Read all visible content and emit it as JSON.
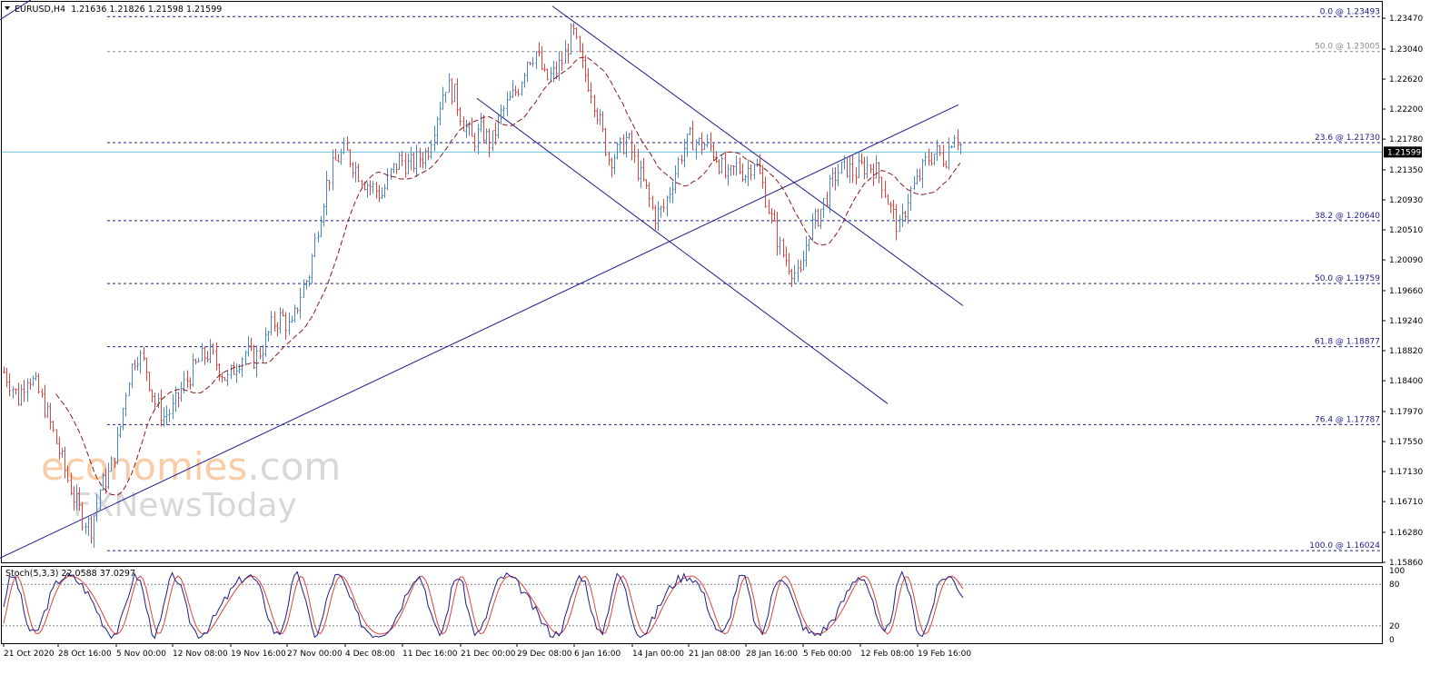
{
  "title": {
    "symbol": "EURUSD,H4",
    "ohlc": "1.21636 1.21826 1.21598 1.21599"
  },
  "stoch_label": "Stoch(5,3,3) 22.0588 37.0297",
  "current_price": "1.21599",
  "watermark": {
    "line1_a": "econ",
    "line1_b": "omies",
    "line1_c": ".com",
    "line2": "FXNewsToday"
  },
  "colors": {
    "bull": "#4a86c8",
    "bear": "#e0443c",
    "ma": "#8b1a1a",
    "trendline": "#1c1c8a",
    "fib": "#1c1c8a",
    "fib_50_top": "#8a8a8a",
    "stoch_main": "#1c1c8a",
    "stoch_signal": "#e0443c",
    "current_line": "#6fc3df",
    "watermark_orange": "#f4a460",
    "watermark_grey": "#b8b8b8"
  },
  "chart_data": {
    "type": "candlestick",
    "symbol": "EURUSD",
    "timeframe": "H4",
    "ylim": [
      1.1586,
      1.237
    ],
    "y_ticks": [
      "1.23470",
      "1.23040",
      "1.22620",
      "1.22200",
      "1.21780",
      "1.21350",
      "1.20930",
      "1.20510",
      "1.20090",
      "1.19660",
      "1.19240",
      "1.18820",
      "1.18400",
      "1.17970",
      "1.17550",
      "1.17130",
      "1.16710",
      "1.16280",
      "1.15860"
    ],
    "x_ticks": [
      "21 Oct 2020",
      "28 Oct 16:00",
      "5 Nov 00:00",
      "12 Nov 08:00",
      "19 Nov 16:00",
      "27 Nov 00:00",
      "4 Dec 08:00",
      "11 Dec 16:00",
      "21 Dec 00:00",
      "29 Dec 08:00",
      "6 Jan 16:00",
      "14 Jan 00:00",
      "21 Jan 08:00",
      "28 Jan 16:00",
      "5 Feb 00:00",
      "12 Feb 08:00",
      "19 Feb 16:00"
    ],
    "price_path": [
      [
        0,
        1.186
      ],
      [
        10,
        1.184
      ],
      [
        20,
        1.1815
      ],
      [
        30,
        1.185
      ],
      [
        40,
        1.183
      ],
      [
        50,
        1.18
      ],
      [
        60,
        1.176
      ],
      [
        70,
        1.172
      ],
      [
        80,
        1.168
      ],
      [
        90,
        1.165
      ],
      [
        100,
        1.1635
      ],
      [
        110,
        1.169
      ],
      [
        120,
        1.171
      ],
      [
        130,
        1.176
      ],
      [
        140,
        1.184
      ],
      [
        150,
        1.188
      ],
      [
        160,
        1.186
      ],
      [
        170,
        1.181
      ],
      [
        180,
        1.179
      ],
      [
        190,
        1.18
      ],
      [
        200,
        1.183
      ],
      [
        210,
        1.185
      ],
      [
        220,
        1.187
      ],
      [
        230,
        1.188
      ],
      [
        240,
        1.186
      ],
      [
        250,
        1.184
      ],
      [
        260,
        1.1865
      ],
      [
        270,
        1.188
      ],
      [
        280,
        1.187
      ],
      [
        290,
        1.189
      ],
      [
        300,
        1.192
      ],
      [
        310,
        1.193
      ],
      [
        320,
        1.191
      ],
      [
        330,
        1.196
      ],
      [
        340,
        1.199
      ],
      [
        350,
        1.206
      ],
      [
        360,
        1.212
      ],
      [
        370,
        1.215
      ],
      [
        380,
        1.216
      ],
      [
        390,
        1.214
      ],
      [
        400,
        1.212
      ],
      [
        410,
        1.211
      ],
      [
        420,
        1.21
      ],
      [
        430,
        1.213
      ],
      [
        440,
        1.215
      ],
      [
        450,
        1.214
      ],
      [
        460,
        1.215
      ],
      [
        470,
        1.216
      ],
      [
        480,
        1.221
      ],
      [
        490,
        1.2255
      ],
      [
        500,
        1.224
      ],
      [
        510,
        1.22
      ],
      [
        520,
        1.2175
      ],
      [
        530,
        1.219
      ],
      [
        540,
        1.217
      ],
      [
        550,
        1.221
      ],
      [
        560,
        1.223
      ],
      [
        570,
        1.225
      ],
      [
        580,
        1.229
      ],
      [
        590,
        1.23
      ],
      [
        600,
        1.226
      ],
      [
        610,
        1.227
      ],
      [
        620,
        1.229
      ],
      [
        630,
        1.233
      ],
      [
        640,
        1.228
      ],
      [
        650,
        1.225
      ],
      [
        660,
        1.22
      ],
      [
        670,
        1.215
      ],
      [
        680,
        1.216
      ],
      [
        690,
        1.218
      ],
      [
        700,
        1.214
      ],
      [
        710,
        1.211
      ],
      [
        720,
        1.207
      ],
      [
        730,
        1.208
      ],
      [
        740,
        1.212
      ],
      [
        750,
        1.216
      ],
      [
        760,
        1.218
      ],
      [
        770,
        1.217
      ],
      [
        780,
        1.217
      ],
      [
        790,
        1.215
      ],
      [
        800,
        1.212
      ],
      [
        810,
        1.214
      ],
      [
        820,
        1.213
      ],
      [
        830,
        1.215
      ],
      [
        840,
        1.211
      ],
      [
        850,
        1.206
      ],
      [
        860,
        1.202
      ],
      [
        870,
        1.2
      ],
      [
        880,
        1.198
      ],
      [
        890,
        1.205
      ],
      [
        900,
        1.207
      ],
      [
        910,
        1.21
      ],
      [
        920,
        1.213
      ],
      [
        930,
        1.214
      ],
      [
        940,
        1.213
      ],
      [
        950,
        1.214
      ],
      [
        960,
        1.214
      ],
      [
        970,
        1.212
      ],
      [
        980,
        1.208
      ],
      [
        990,
        1.205
      ],
      [
        1000,
        1.21
      ],
      [
        1010,
        1.212
      ],
      [
        1020,
        1.215
      ],
      [
        1030,
        1.216
      ],
      [
        1040,
        1.215
      ],
      [
        1050,
        1.219
      ],
      [
        1060,
        1.216
      ]
    ],
    "fib_levels": [
      {
        "label": "0.0 @ 1.23493",
        "price": 1.23493
      },
      {
        "label": "50.0 @ 1.23005",
        "price": 1.23005,
        "style": "grey"
      },
      {
        "label": "23.6 @ 1.21730",
        "price": 1.2173
      },
      {
        "label": "38.2 @ 1.20640",
        "price": 1.2064
      },
      {
        "label": "50.0 @ 1.19759",
        "price": 1.19759
      },
      {
        "label": "61.8 @ 1.18877",
        "price": 1.18877
      },
      {
        "label": "76.4 @ 1.17787",
        "price": 1.17787
      },
      {
        "label": "100.0 @ 1.16024",
        "price": 1.16024
      }
    ],
    "trendlines": [
      {
        "name": "rising support",
        "from": [
          0,
          1.1592
        ],
        "to": [
          1055,
          1.2226
        ]
      },
      {
        "name": "channel upper",
        "from": [
          608,
          1.2364
        ],
        "to": [
          1060,
          1.1945
        ]
      },
      {
        "name": "channel lower",
        "from": [
          525,
          1.2235
        ],
        "to": [
          977,
          1.1808
        ]
      },
      {
        "name": "top-left segment",
        "from": [
          0,
          1.2345
        ],
        "to": [
          55,
          1.239
        ]
      }
    ],
    "current_price": 1.21599,
    "stochastic": {
      "k": 5,
      "d": 3,
      "slowing": 3,
      "main": 22.0588,
      "signal": 37.0297,
      "levels": [
        80,
        20
      ],
      "scale_ticks": [
        "100",
        "80",
        "20",
        "0"
      ]
    }
  }
}
